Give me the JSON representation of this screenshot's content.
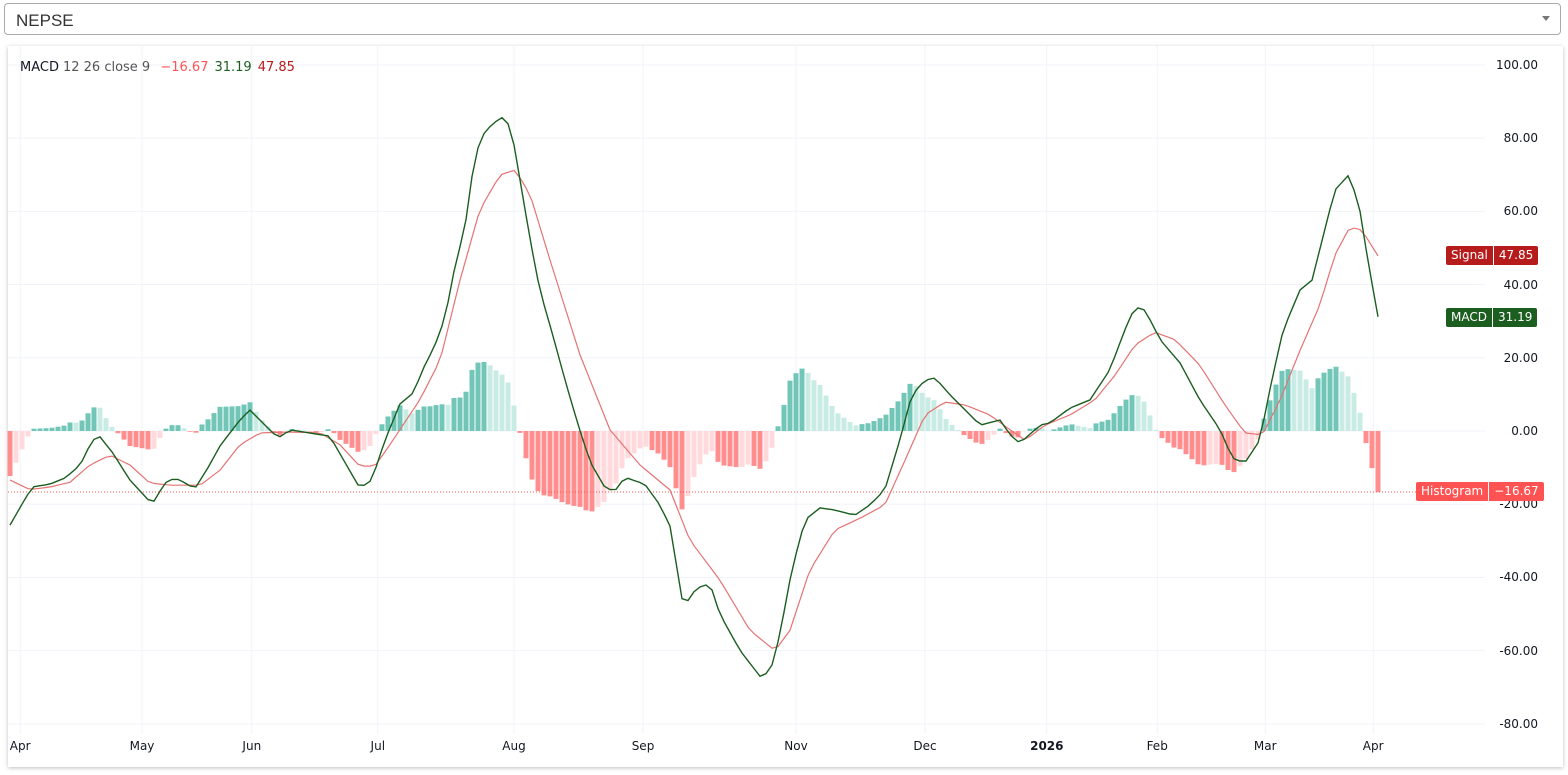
{
  "selector": {
    "value": "NEPSE"
  },
  "legend": {
    "name": "MACD",
    "params": "12 26 close 9",
    "histogram": "−16.67",
    "macd": "31.19",
    "signal": "47.85"
  },
  "tags": {
    "signal_label": "Signal",
    "signal_value": "47.85",
    "macd_label": "MACD",
    "macd_value": "31.19",
    "hist_label": "Histogram",
    "hist_value": "−16.67"
  },
  "colors": {
    "macd": "#1b5e20",
    "signal": "#e57373",
    "hist_up_strong": "#71c6b8",
    "hist_up_weak": "#c8ebe4",
    "hist_down_strong": "#ff8f8f",
    "hist_down_weak": "#ffd9dc",
    "signal_tag": "#b71c1c",
    "macd_tag": "#1b5e20",
    "hist_tag": "#ff5252"
  },
  "chart_data": {
    "type": "line",
    "title": "MACD 12 26 close 9",
    "ylim": [
      -80,
      100
    ],
    "y_ticks": [
      "100.00",
      "80.00",
      "60.00",
      "40.00",
      "20.00",
      "0.00",
      "-20.00",
      "-40.00",
      "-60.00",
      "-80.00"
    ],
    "y_tick_values": [
      100,
      80,
      60,
      40,
      20,
      0,
      -20,
      -40,
      -60,
      -80
    ],
    "x_ticks": [
      {
        "label": "Apr",
        "bar": 1.7
      },
      {
        "label": "May",
        "bar": 22
      },
      {
        "label": "Jun",
        "bar": 40.3
      },
      {
        "label": "Jul",
        "bar": 61.3
      },
      {
        "label": "Aug",
        "bar": 84
      },
      {
        "label": "Sep",
        "bar": 105.5
      },
      {
        "label": "Nov",
        "bar": 131
      },
      {
        "label": "Dec",
        "bar": 152.5
      },
      {
        "label": "2026",
        "bar": 172.8,
        "bold": true
      },
      {
        "label": "Feb",
        "bar": 191.2
      },
      {
        "label": "Mar",
        "bar": 209.2
      },
      {
        "label": "Apr",
        "bar": 227.2
      }
    ],
    "bars": 229,
    "last": {
      "macd": 31.19,
      "signal": 47.85,
      "histogram": -16.67
    },
    "macd": [
      [
        0,
        -25.7
      ],
      [
        2,
        -20
      ],
      [
        3.7,
        -15.3
      ],
      [
        6.7,
        -14.5
      ],
      [
        9.2,
        -12.8
      ],
      [
        11.7,
        -9.3
      ],
      [
        13.7,
        -2.5
      ],
      [
        15,
        -1.6
      ],
      [
        17,
        -5.7
      ],
      [
        20,
        -13.4
      ],
      [
        23.7,
        -20
      ],
      [
        25.8,
        -14.2
      ],
      [
        27.5,
        -12.8
      ],
      [
        29.2,
        -14.2
      ],
      [
        30.8,
        -15.8
      ],
      [
        33,
        -10
      ],
      [
        35,
        -4.1
      ],
      [
        38.3,
        3
      ],
      [
        40,
        5.7
      ],
      [
        42.5,
        1.6
      ],
      [
        44.7,
        -1.9
      ],
      [
        46.7,
        0.3
      ],
      [
        53.3,
        -1.4
      ],
      [
        55.8,
        -8.5
      ],
      [
        58.3,
        -15.6
      ],
      [
        60.3,
        -13.4
      ],
      [
        62.5,
        -2.5
      ],
      [
        65,
        7.4
      ],
      [
        67.2,
        10.4
      ],
      [
        69.5,
        19.4
      ],
      [
        70.5,
        22
      ],
      [
        72.5,
        30.9
      ],
      [
        74.2,
        45.3
      ],
      [
        75.8,
        55.4
      ],
      [
        77.5,
        75.4
      ],
      [
        79.2,
        82
      ],
      [
        81.3,
        85
      ],
      [
        82.5,
        86
      ],
      [
        83.7,
        81
      ],
      [
        85,
        68.6
      ],
      [
        86.7,
        52.2
      ],
      [
        88.3,
        38.5
      ],
      [
        90.5,
        26
      ],
      [
        92.5,
        13.9
      ],
      [
        94.7,
        1.6
      ],
      [
        96.7,
        -8.5
      ],
      [
        99.2,
        -15.6
      ],
      [
        100.8,
        -16.4
      ],
      [
        102.5,
        -12.6
      ],
      [
        103.8,
        -13.4
      ],
      [
        105.8,
        -14.5
      ],
      [
        108.3,
        -20.2
      ],
      [
        110.3,
        -27
      ],
      [
        111.7,
        -44.8
      ],
      [
        112.5,
        -47.5
      ],
      [
        114.2,
        -43.4
      ],
      [
        115.8,
        -41.8
      ],
      [
        117,
        -43.4
      ],
      [
        118.3,
        -50
      ],
      [
        121.7,
        -60
      ],
      [
        125,
        -67
      ],
      [
        126.7,
        -65.8
      ],
      [
        128.3,
        -55.7
      ],
      [
        130.3,
        -38
      ],
      [
        132.5,
        -24.3
      ],
      [
        135,
        -21
      ],
      [
        137.5,
        -21.6
      ],
      [
        140.8,
        -23
      ],
      [
        143.3,
        -20.2
      ],
      [
        145.8,
        -16.1
      ],
      [
        148.3,
        -2.5
      ],
      [
        150.3,
        9.8
      ],
      [
        152.5,
        13.9
      ],
      [
        154.2,
        14.5
      ],
      [
        156.7,
        9.8
      ],
      [
        159.2,
        5.7
      ],
      [
        161.7,
        1.6
      ],
      [
        165,
        3
      ],
      [
        166.7,
        -1.1
      ],
      [
        168.3,
        -3.3
      ],
      [
        171.7,
        1.6
      ],
      [
        173.3,
        2.2
      ],
      [
        176.7,
        6.3
      ],
      [
        180,
        8.5
      ],
      [
        183.3,
        16.7
      ],
      [
        185.8,
        27.6
      ],
      [
        187.5,
        33.9
      ],
      [
        189.2,
        33
      ],
      [
        191.7,
        24.9
      ],
      [
        195,
        18.6
      ],
      [
        198.3,
        8.5
      ],
      [
        201.7,
        0.3
      ],
      [
        203.7,
        -7.4
      ],
      [
        205.8,
        -8.7
      ],
      [
        208.3,
        -2.5
      ],
      [
        210.3,
        13.9
      ],
      [
        212.2,
        27.6
      ],
      [
        215,
        38.5
      ],
      [
        217,
        41.2
      ],
      [
        218.7,
        52.2
      ],
      [
        220.8,
        65.8
      ],
      [
        223,
        69.7
      ],
      [
        224.7,
        63.1
      ],
      [
        226.3,
        46.7
      ],
      [
        228,
        31.19
      ]
    ],
    "signal": [
      [
        0,
        -13.4
      ],
      [
        3.3,
        -16
      ],
      [
        6.7,
        -15.3
      ],
      [
        10,
        -14
      ],
      [
        13.3,
        -9.3
      ],
      [
        16.7,
        -6.6
      ],
      [
        20,
        -9.3
      ],
      [
        23.3,
        -14.2
      ],
      [
        26.7,
        -14.8
      ],
      [
        31.7,
        -14.8
      ],
      [
        35,
        -10.7
      ],
      [
        38.3,
        -3.8
      ],
      [
        41.7,
        -0.5
      ],
      [
        46.7,
        -0.3
      ],
      [
        51.7,
        -0.5
      ],
      [
        55,
        -3.8
      ],
      [
        58.3,
        -9.6
      ],
      [
        60.8,
        -9.6
      ],
      [
        63.3,
        -3.8
      ],
      [
        68.3,
        8.5
      ],
      [
        71.7,
        19.4
      ],
      [
        75,
        41.2
      ],
      [
        78.3,
        60.4
      ],
      [
        81.7,
        70
      ],
      [
        84.2,
        71.3
      ],
      [
        86.7,
        64.5
      ],
      [
        90,
        46.7
      ],
      [
        95,
        20.8
      ],
      [
        100,
        0.3
      ],
      [
        105,
        -9.3
      ],
      [
        110,
        -16.1
      ],
      [
        113.3,
        -29.8
      ],
      [
        118.3,
        -40.7
      ],
      [
        123.3,
        -54.4
      ],
      [
        127.5,
        -60
      ],
      [
        130,
        -54.4
      ],
      [
        133.3,
        -38
      ],
      [
        137.5,
        -27
      ],
      [
        141.7,
        -23.8
      ],
      [
        145.8,
        -20.2
      ],
      [
        149.2,
        -7.9
      ],
      [
        152.5,
        4.4
      ],
      [
        155.8,
        7.9
      ],
      [
        159.2,
        7.1
      ],
      [
        163.3,
        4.4
      ],
      [
        166.7,
        0.3
      ],
      [
        169.2,
        -2.5
      ],
      [
        172.5,
        1.6
      ],
      [
        176.7,
        4.4
      ],
      [
        180.8,
        8.5
      ],
      [
        184.2,
        15.3
      ],
      [
        187.5,
        23.5
      ],
      [
        190.8,
        27
      ],
      [
        194.2,
        24.9
      ],
      [
        198.3,
        18
      ],
      [
        202.5,
        7.1
      ],
      [
        205.8,
        -0.5
      ],
      [
        208.7,
        -1.1
      ],
      [
        211.7,
        8.5
      ],
      [
        215,
        22
      ],
      [
        218.3,
        34.4
      ],
      [
        220.8,
        48
      ],
      [
        223.3,
        55.7
      ],
      [
        225.3,
        54.9
      ],
      [
        228,
        47.85
      ]
    ]
  }
}
